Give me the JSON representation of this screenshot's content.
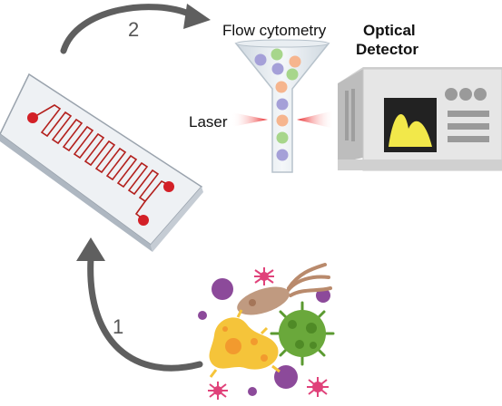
{
  "labels": {
    "flow_cytometry": "Flow cytometry",
    "optical_line1": "Optical",
    "optical_line2": "Detector",
    "laser": "Laser",
    "step1": "1",
    "step2": "2"
  },
  "colors": {
    "arrow": "#5f5f5f",
    "chip_top": "#dfe3e8",
    "chip_edge": "#9aa3ad",
    "channel": "#b3201d",
    "port": "#d32027",
    "laser": "#e8262a",
    "detector_body": "#e6e6e6",
    "screen": "#222222",
    "signal": "#f2e84a",
    "funnel": "#dde4ea",
    "cell_purple": "#a5a0d8",
    "cell_orange": "#f6b58e",
    "cell_green": "#a7d68b",
    "microbe_purple": "#8c4a9a",
    "microbe_pink": "#e0427a",
    "microbe_green": "#6aa83b",
    "microbe_yellow": "#f5c43a",
    "microbe_orange": "#f29a2e",
    "microbe_brown": "#b98a6c"
  },
  "icons": [
    "microfluidic-chip-icon",
    "funnel-icon",
    "laser-beam-icon",
    "optical-detector-icon",
    "microbes-icon"
  ]
}
